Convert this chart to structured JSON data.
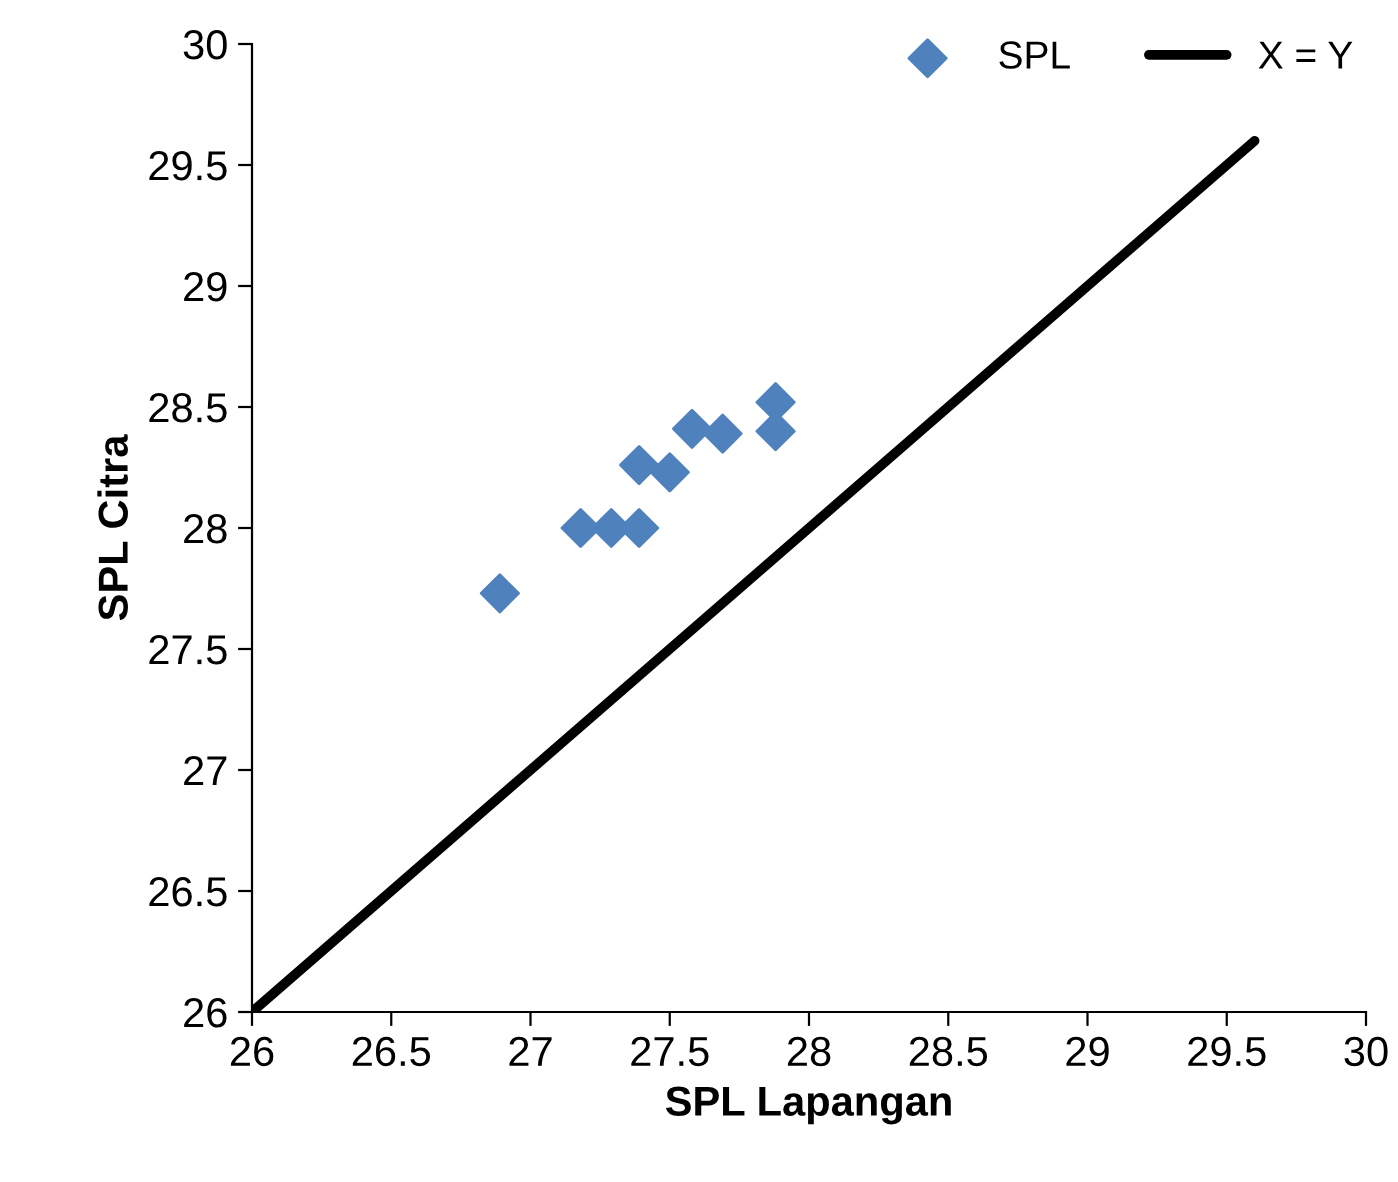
{
  "chart_data": {
    "type": "scatter",
    "xlabel": "SPL Lapangan",
    "ylabel": "SPL Citra",
    "series": [
      {
        "name": "SPL",
        "color": "#4f81bd",
        "marker": "diamond",
        "x": [
          26.89,
          27.18,
          27.29,
          27.39,
          27.39,
          27.5,
          27.58,
          27.69,
          27.88,
          27.88
        ],
        "values": [
          27.73,
          28.0,
          28.0,
          28.0,
          28.26,
          28.23,
          28.41,
          28.39,
          28.52,
          28.4
        ]
      },
      {
        "name": "X = Y",
        "type": "line",
        "color": "#000000",
        "marker": "none",
        "line_style": "solid",
        "x": [
          26,
          29.6
        ],
        "values": [
          26,
          29.6
        ]
      }
    ],
    "xlim": [
      26,
      30
    ],
    "xticks": [
      26,
      26.5,
      27,
      27.5,
      28,
      28.5,
      29,
      29.5,
      30
    ],
    "ylim": [
      26,
      30
    ],
    "yticks": [
      26,
      26.5,
      27,
      27.5,
      28,
      28.5,
      29,
      29.5,
      30
    ],
    "grid": false,
    "legend": "top right"
  }
}
